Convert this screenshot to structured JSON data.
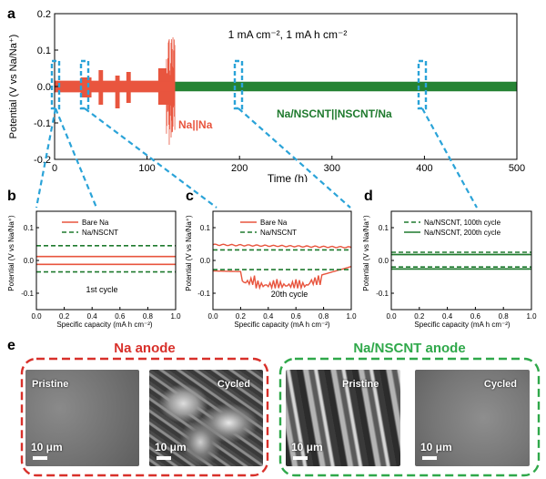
{
  "panel_a": {
    "label": "a",
    "condition": "1 mA cm⁻², 1 mA h cm⁻²",
    "ylabel": "Potential (V vs Na/Na⁺)",
    "xlabel": "Time (h)",
    "xticks": [
      "0",
      "100",
      "200",
      "300",
      "400",
      "500"
    ],
    "yticks": [
      "0.2",
      "0.1",
      "0.0",
      "-0.1",
      "-0.2"
    ],
    "na_label": "Na||Na",
    "nscnt_label": "Na/NSCNT||NSCNT/Na",
    "colors": {
      "na": "#e8553e",
      "nscnt": "#1f7a2e",
      "callout": "#2aa3d8"
    }
  },
  "panel_b": {
    "label": "b",
    "ylabel": "Potential (V vs Na/Na⁺)",
    "xlabel": "Specific capacity (mA h cm⁻²)",
    "legend": [
      "Bare Na",
      "Na/NSCNT"
    ],
    "annotation": "1st cycle"
  },
  "panel_c": {
    "label": "c",
    "ylabel": "Potential (V vs Na/Na⁺)",
    "xlabel": "Specific capacity (mA h cm⁻²)",
    "legend": [
      "Bare Na",
      "Na/NSCNT"
    ],
    "annotation": "20th cycle"
  },
  "panel_d": {
    "label": "d",
    "ylabel": "Potential (V vs Na/Na⁺)",
    "xlabel": "Specific capacity (mA h cm⁻²)",
    "legend": [
      "Na/NSCNT, 100th cycle",
      "Na/NSCNT, 200th cycle"
    ]
  },
  "small_axes": {
    "xticks": [
      "0.0",
      "0.2",
      "0.4",
      "0.6",
      "0.8",
      "1.0"
    ],
    "yticks": [
      "0.1",
      "0.0",
      "-0.1"
    ]
  },
  "panel_e": {
    "label": "e",
    "na_anode_title": "Na anode",
    "nscnt_anode_title": "Na/NSCNT anode",
    "pristine": "Pristine",
    "cycled": "Cycled",
    "scale_bar": "10 μm",
    "colors": {
      "na_box": "#d8302a",
      "nscnt_box": "#2fa84a"
    }
  }
}
